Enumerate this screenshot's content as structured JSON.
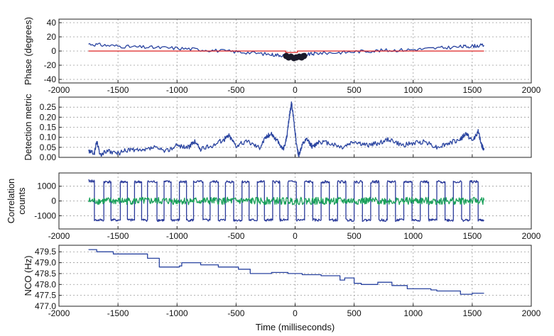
{
  "chart_data": [
    {
      "type": "line",
      "ylabel": "Phase (degrees)",
      "xlim": [
        -2000,
        2000
      ],
      "ylim": [
        -45,
        45
      ],
      "xticks": [
        -2000,
        -1500,
        -1000,
        -500,
        0,
        500,
        1000,
        1500,
        2000
      ],
      "xtick_labels": [
        "-2000",
        "-1500",
        "-1000",
        "-500",
        "0",
        "500",
        "1000",
        "1500",
        "2000"
      ],
      "yticks": [
        -40,
        -20,
        0,
        20,
        40
      ],
      "ytick_labels": [
        "-40",
        "-20",
        "0",
        "20",
        "40"
      ],
      "grid": true,
      "series": [
        {
          "color": "#2a44a0",
          "x": [
            -1750,
            -1600,
            -1400,
            -1200,
            -1000,
            -800,
            -600,
            -400,
            -200,
            -100,
            0,
            100,
            200,
            400,
            600,
            800,
            1000,
            1200,
            1400,
            1500,
            1600
          ],
          "y": [
            10,
            8,
            6,
            5,
            4,
            2,
            0,
            -2,
            -5,
            -6,
            -7,
            -5,
            -3,
            -2,
            0,
            1,
            2,
            4,
            6,
            7,
            8
          ]
        },
        {
          "color": "#dd2222",
          "x": [
            -1750,
            -80,
            -80,
            20,
            20,
            1600
          ],
          "y": [
            0,
            0,
            -2,
            -2,
            0,
            0
          ]
        }
      ],
      "markers": {
        "color": "#1a1a2a",
        "x": [
          -75,
          -55,
          -35,
          -10,
          10,
          35,
          55,
          75
        ],
        "y": [
          -7,
          -9,
          -8,
          -10,
          -9,
          -8,
          -9,
          -7
        ]
      }
    },
    {
      "type": "line",
      "ylabel": "Detection metric",
      "xlim": [
        -2000,
        2000
      ],
      "ylim": [
        0,
        0.3
      ],
      "xticks": [
        -2000,
        -1500,
        -1000,
        -500,
        0,
        500,
        1000,
        1500,
        2000
      ],
      "yticks": [
        0,
        0.05,
        0.1,
        0.15,
        0.2,
        0.25
      ],
      "ytick_labels": [
        "0.00",
        "0.05",
        "0.10",
        "0.15",
        "0.20",
        "0.25"
      ],
      "grid": true,
      "series": [
        {
          "color": "#2a44a0",
          "x": [
            -1750,
            -1700,
            -1680,
            -1650,
            -1600,
            -1500,
            -1400,
            -1300,
            -1200,
            -1100,
            -1000,
            -900,
            -850,
            -800,
            -700,
            -600,
            -560,
            -500,
            -400,
            -300,
            -250,
            -200,
            -150,
            -100,
            -70,
            -50,
            -30,
            -10,
            10,
            30,
            60,
            100,
            150,
            200,
            300,
            400,
            500,
            600,
            700,
            800,
            900,
            1000,
            1100,
            1200,
            1300,
            1400,
            1450,
            1500,
            1550,
            1580,
            1600
          ],
          "y": [
            0.03,
            0.02,
            0.08,
            0.01,
            0.03,
            0.02,
            0.04,
            0.03,
            0.05,
            0.03,
            0.06,
            0.05,
            0.08,
            0.04,
            0.06,
            0.09,
            0.11,
            0.06,
            0.08,
            0.05,
            0.1,
            0.12,
            0.08,
            0.04,
            0.1,
            0.2,
            0.27,
            0.18,
            0.07,
            0.01,
            0.06,
            0.09,
            0.05,
            0.08,
            0.07,
            0.05,
            0.08,
            0.06,
            0.07,
            0.09,
            0.06,
            0.07,
            0.08,
            0.05,
            0.07,
            0.09,
            0.12,
            0.08,
            0.13,
            0.06,
            0.04
          ]
        }
      ]
    },
    {
      "type": "line",
      "ylabel": "Correlation\ncounts",
      "xlim": [
        -2000,
        2000
      ],
      "ylim": [
        -1900,
        1900
      ],
      "xticks": [
        -2000,
        -1500,
        -1000,
        -500,
        0,
        500,
        1000,
        1500,
        2000
      ],
      "xtick_labels": [
        "-2000",
        "-1500",
        "-1000",
        "-500",
        "0",
        "500",
        "1000",
        "1500",
        "2000"
      ],
      "yticks": [
        -1000,
        0,
        1000
      ],
      "ytick_labels": [
        "-1000",
        "0",
        "1000"
      ],
      "grid": true,
      "series": [
        {
          "color": "#2a3a9a",
          "x": [
            -1750,
            -1700,
            -1700,
            -1620,
            -1620,
            -1560,
            -1560,
            -1480,
            -1480,
            -1420,
            -1420,
            -1360,
            -1360,
            -1300,
            -1300,
            -1250,
            -1250,
            -1170,
            -1170,
            -1110,
            -1110,
            -1050,
            -1050,
            -980,
            -980,
            -920,
            -920,
            -860,
            -860,
            -780,
            -780,
            -720,
            -720,
            -650,
            -650,
            -590,
            -590,
            -520,
            -520,
            -450,
            -450,
            -390,
            -390,
            -320,
            -320,
            -260,
            -260,
            -190,
            -190,
            -130,
            -130,
            -60,
            -60,
            10,
            10,
            80,
            80,
            150,
            150,
            220,
            220,
            290,
            290,
            360,
            360,
            430,
            430,
            500,
            500,
            570,
            570,
            640,
            640,
            710,
            710,
            780,
            780,
            850,
            850,
            920,
            920,
            990,
            990,
            1060,
            1060,
            1130,
            1130,
            1200,
            1200,
            1270,
            1270,
            1340,
            1340,
            1410,
            1410,
            1480,
            1480,
            1550,
            1550,
            1600
          ],
          "y": [
            1350,
            1350,
            -1300,
            -1300,
            1300,
            1300,
            -1300,
            -1300,
            1300,
            1300,
            -1300,
            -1300,
            1300,
            1300,
            -1300,
            -1300,
            1300,
            1300,
            -1300,
            -1300,
            1300,
            1300,
            -1300,
            -1300,
            1300,
            1300,
            -1300,
            -1300,
            1300,
            1300,
            -1300,
            -1300,
            1300,
            1300,
            -1300,
            -1300,
            1300,
            1300,
            -1300,
            -1300,
            1300,
            1300,
            -1300,
            -1300,
            1300,
            1300,
            -1300,
            -1300,
            1300,
            1300,
            -1300,
            -1300,
            1300,
            1300,
            -1300,
            -1300,
            1300,
            1300,
            -1300,
            -1300,
            1300,
            1300,
            -1300,
            -1300,
            1300,
            1300,
            -1300,
            -1300,
            1300,
            1300,
            -1300,
            -1300,
            1300,
            1300,
            -1300,
            -1300,
            1300,
            1300,
            -1300,
            -1300,
            1300,
            1300,
            -1300,
            -1300,
            1300,
            1300,
            -1300,
            -1300,
            1300,
            1300,
            -1300,
            -1300,
            1300,
            1300,
            -1300,
            -1300,
            1300,
            1300,
            -1300,
            -1300
          ]
        },
        {
          "color": "#1aa05a",
          "x": [
            -1750,
            1600
          ],
          "y": [
            0,
            0
          ],
          "noise_amplitude": 250
        }
      ]
    },
    {
      "type": "line",
      "ylabel": "NCO (Hz)",
      "xlabel": "Time (milliseconds)",
      "xlim": [
        -2000,
        2000
      ],
      "ylim": [
        477,
        479.8
      ],
      "xticks": [
        -2000,
        -1500,
        -1000,
        -500,
        0,
        500,
        1000,
        1500,
        2000
      ],
      "xtick_labels": [
        "-2000",
        "-1500",
        "-1000",
        "-500",
        "0",
        "500",
        "1000",
        "1500",
        "2000"
      ],
      "yticks": [
        477,
        477.5,
        478,
        478.5,
        479,
        479.5
      ],
      "ytick_labels": [
        "477.0",
        "477.5",
        "478.0",
        "478.5",
        "479.0",
        "479.5"
      ],
      "grid": true,
      "series": [
        {
          "color": "#2a44a0",
          "step": true,
          "x": [
            -1750,
            -1680,
            -1540,
            -1400,
            -1250,
            -1150,
            -980,
            -960,
            -800,
            -650,
            -480,
            -380,
            -200,
            -60,
            60,
            120,
            220,
            380,
            420,
            500,
            560,
            700,
            820,
            950,
            1000,
            1150,
            1200,
            1320,
            1400,
            1500,
            1600
          ],
          "y": [
            479.6,
            479.5,
            479.4,
            479.4,
            479.2,
            478.8,
            478.85,
            479.0,
            478.9,
            478.8,
            478.7,
            478.5,
            478.55,
            478.5,
            478.45,
            478.45,
            478.4,
            478.2,
            478.3,
            478.05,
            478.0,
            478.1,
            477.95,
            477.8,
            477.8,
            477.75,
            477.7,
            477.7,
            477.55,
            477.6,
            477.6
          ]
        }
      ]
    }
  ]
}
